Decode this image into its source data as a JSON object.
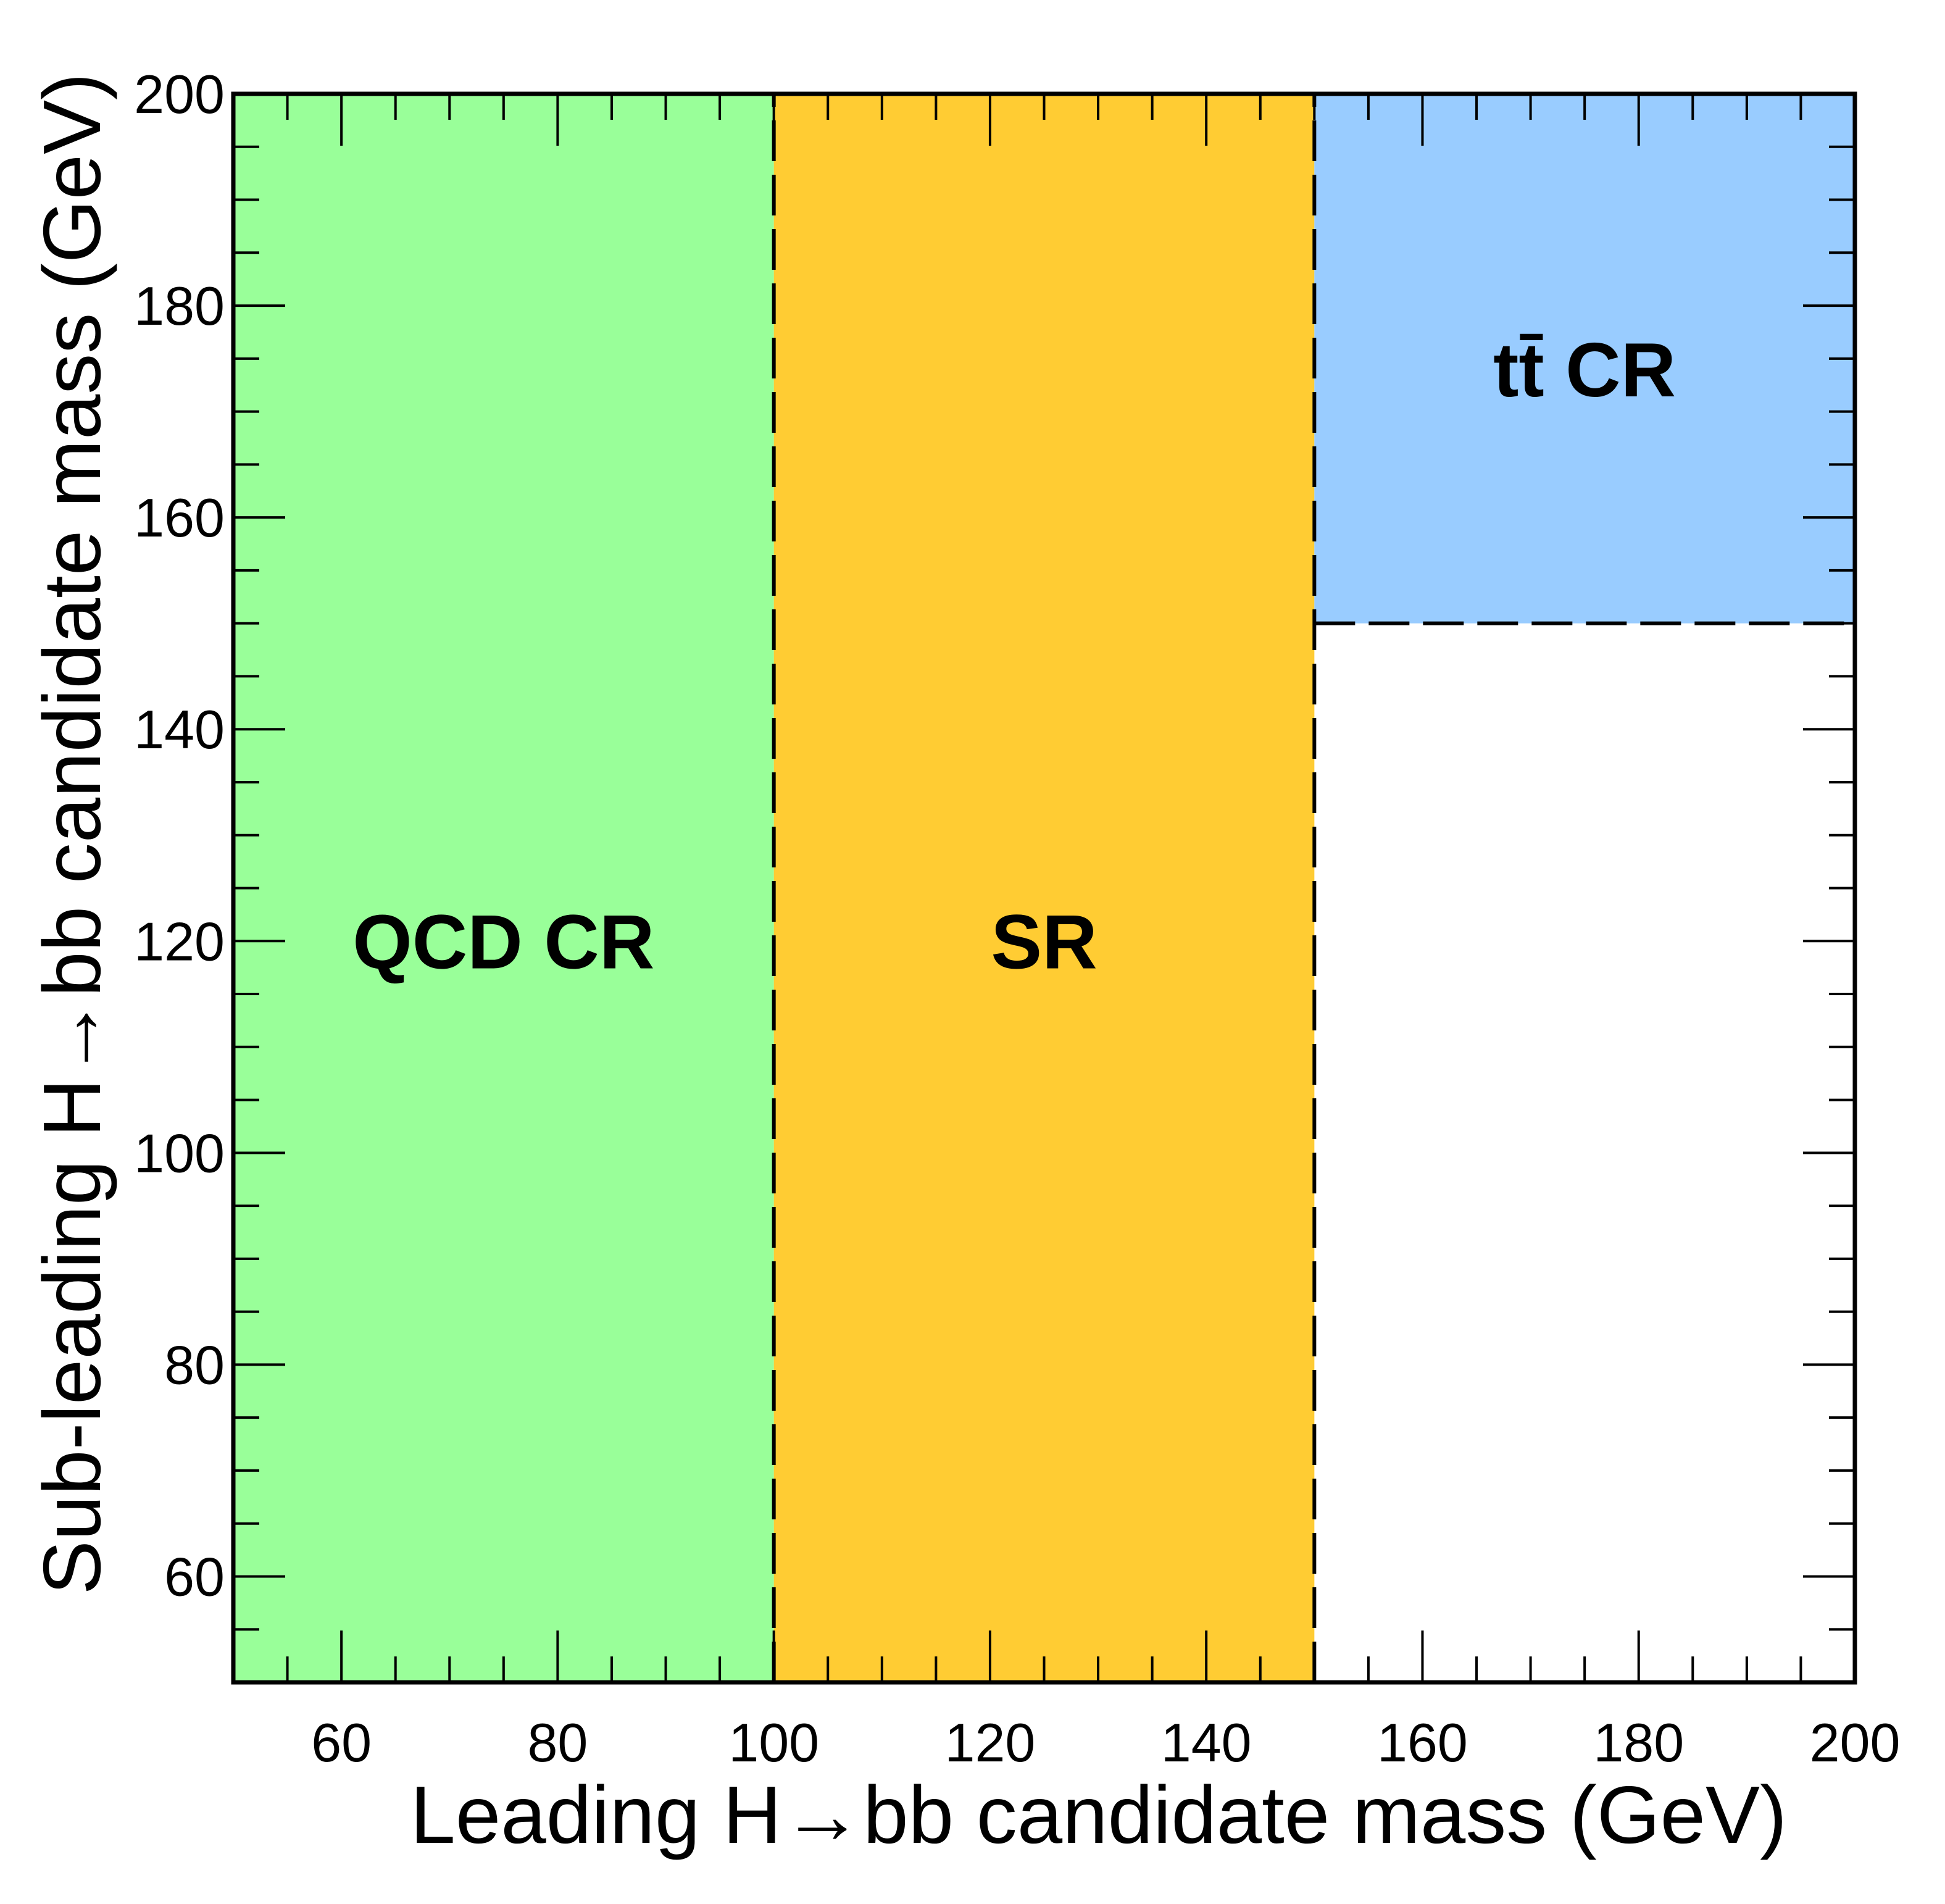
{
  "chart_data": {
    "type": "region-map",
    "xlabel": "Leading H→bb candidate mass (GeV)",
    "ylabel": "Sub-leading H→bb candidate mass (GeV)",
    "xlim": [
      50,
      200
    ],
    "ylim": [
      50,
      200
    ],
    "x_major_ticks": [
      60,
      80,
      100,
      120,
      140,
      160,
      180,
      200
    ],
    "y_major_ticks": [
      60,
      80,
      100,
      120,
      140,
      160,
      180,
      200
    ],
    "x_minor_step": 5,
    "y_minor_step": 5,
    "regions": [
      {
        "name": "QCD CR",
        "label": "QCD CR",
        "x": [
          50,
          100
        ],
        "y": [
          50,
          200
        ],
        "color": "#99ff99",
        "label_at": [
          75,
          120
        ]
      },
      {
        "name": "SR",
        "label": "SR",
        "x": [
          100,
          150
        ],
        "y": [
          50,
          200
        ],
        "color": "#ffcc33",
        "label_at": [
          125,
          120
        ]
      },
      {
        "name": "ttbar CR",
        "label": "tt̄ CR",
        "x": [
          150,
          200
        ],
        "y": [
          150,
          200
        ],
        "color": "#99ccff",
        "label_at": [
          175,
          174
        ]
      }
    ],
    "boundaries": [
      {
        "x": [
          100,
          100
        ],
        "y": [
          50,
          200
        ],
        "style": "dashed"
      },
      {
        "x": [
          150,
          150
        ],
        "y": [
          50,
          200
        ],
        "style": "dashed"
      },
      {
        "x": [
          150,
          200
        ],
        "y": [
          150,
          150
        ],
        "style": "dashed"
      }
    ]
  }
}
